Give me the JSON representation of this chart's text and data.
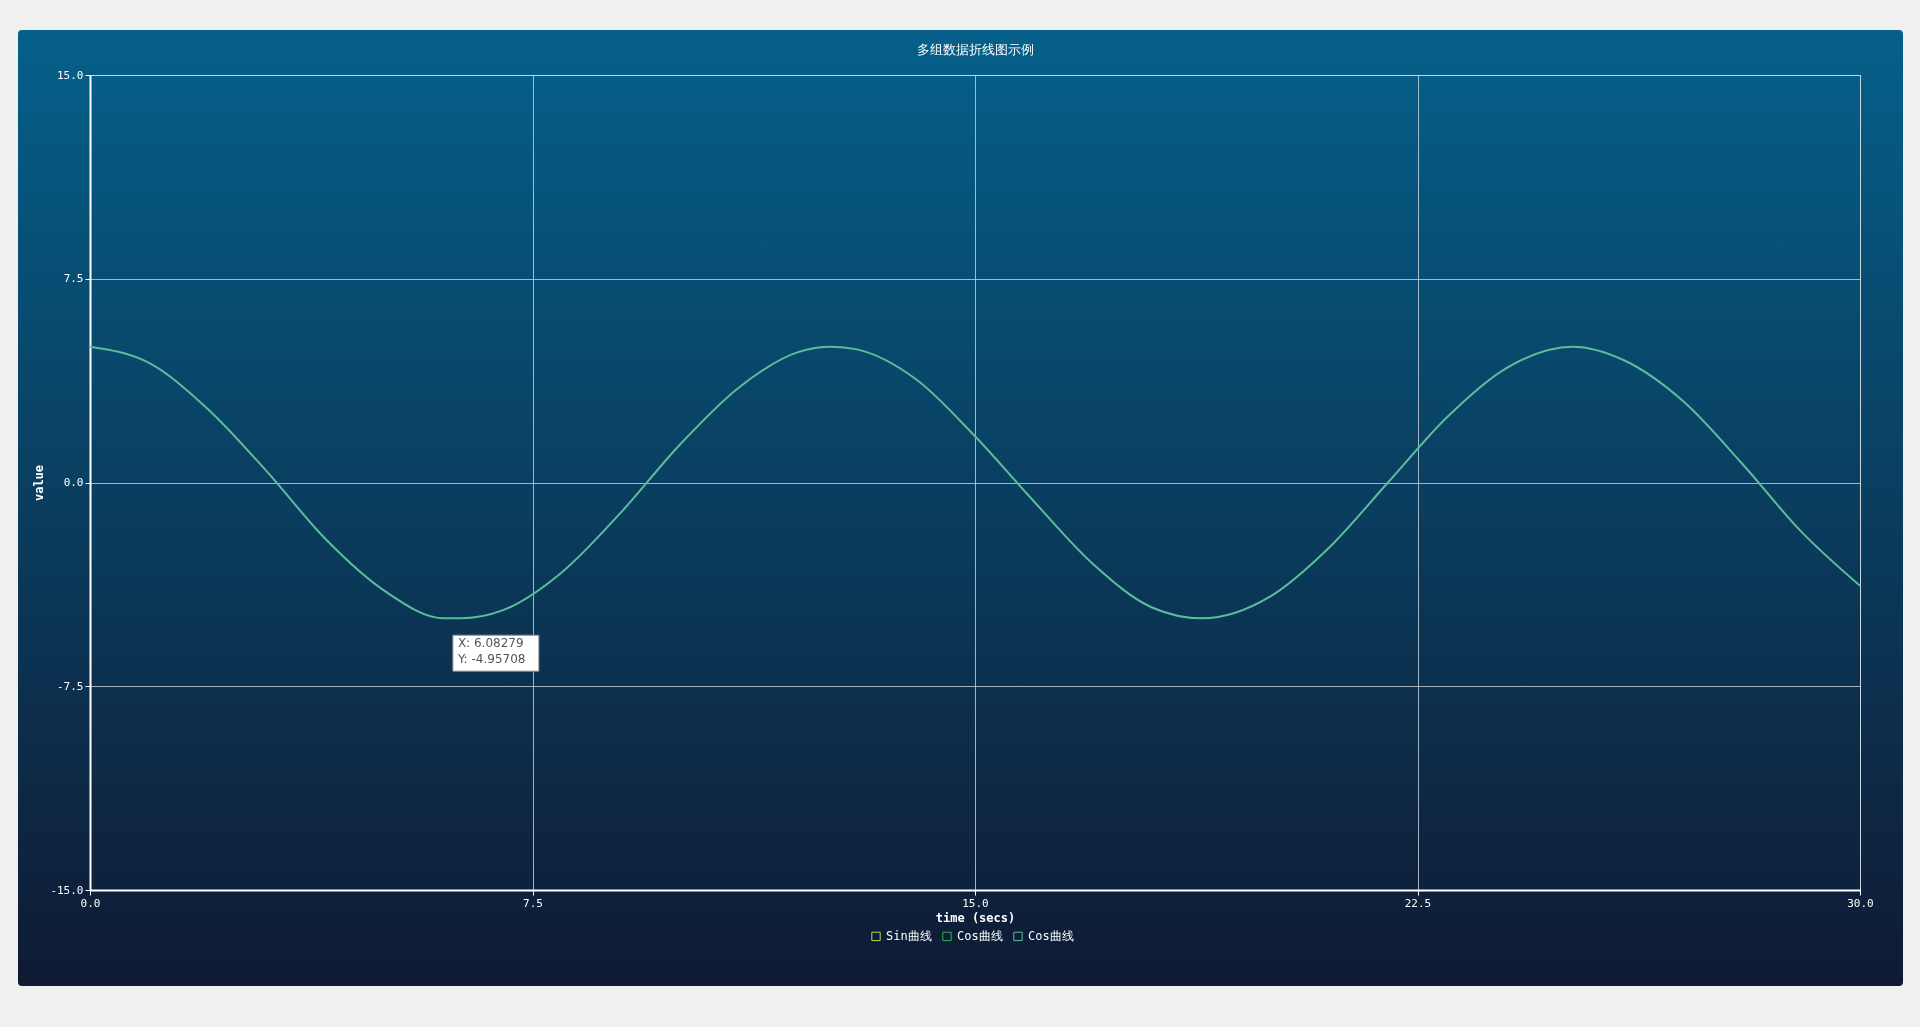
{
  "chart_data": {
    "type": "line",
    "title": "多组数据折线图示例",
    "xlabel": "time (secs)",
    "ylabel": "value",
    "x": [
      0,
      1,
      2,
      3,
      4,
      5,
      6,
      6.28,
      7,
      8,
      9,
      10,
      11,
      12,
      12.57,
      13,
      14,
      15,
      16,
      17,
      18,
      18.85,
      20,
      21,
      22,
      23,
      24,
      25.13,
      26,
      27,
      28,
      29,
      30
    ],
    "series": [
      {
        "name": "Sin曲线",
        "color": "#bcd84c",
        "values": [
          null,
          null,
          null,
          null,
          null,
          null,
          null,
          null,
          null,
          null,
          null,
          null,
          null,
          null,
          null,
          null,
          null,
          null,
          null,
          null,
          null,
          null,
          null,
          null,
          null,
          null,
          null,
          null,
          null,
          null,
          null,
          null,
          null
        ]
      },
      {
        "name": "Cos曲线",
        "color": "#2cb24c",
        "values": [
          null,
          null,
          null,
          null,
          null,
          null,
          null,
          null,
          null,
          null,
          null,
          null,
          null,
          null,
          null,
          null,
          null,
          null,
          null,
          null,
          null,
          null,
          null,
          null,
          null,
          null,
          null,
          null,
          null,
          null,
          null,
          null,
          null
        ]
      },
      {
        "name": "Cos曲线",
        "color": "#5cbc9c",
        "values": [
          5.0,
          4.4,
          2.7,
          0.4,
          -2.1,
          -4.0,
          -5.0,
          -5.0,
          -4.7,
          -3.3,
          -1.1,
          1.4,
          3.5,
          4.8,
          5.0,
          4.9,
          3.8,
          1.7,
          -0.7,
          -3.0,
          -4.6,
          -5.0,
          -4.2,
          -2.4,
          0.0,
          2.4,
          4.2,
          5.0,
          4.5,
          3.0,
          0.7,
          -1.8,
          -3.8
        ]
      }
    ],
    "xlim": [
      0,
      30
    ],
    "xticks": [
      {
        "value": 0,
        "label": "0.0"
      },
      7.5,
      {
        "value": 15,
        "label": "15.0"
      },
      22.5,
      {
        "value": 30,
        "label": "30.0"
      }
    ],
    "ylim": [
      -15,
      15
    ],
    "yticks": [
      {
        "value": -15,
        "label": "-15.0"
      },
      -7.5,
      {
        "value": 0,
        "label": "0.0"
      },
      7.5,
      {
        "value": 15,
        "label": "15.0"
      }
    ],
    "grid": true,
    "legend": "bottom",
    "line_style": "solid",
    "marker": "none",
    "annotations": [
      {
        "text": "X: 6.08279\nY: -4.95708",
        "x": 6.08279,
        "y": -4.95708
      }
    ]
  }
}
